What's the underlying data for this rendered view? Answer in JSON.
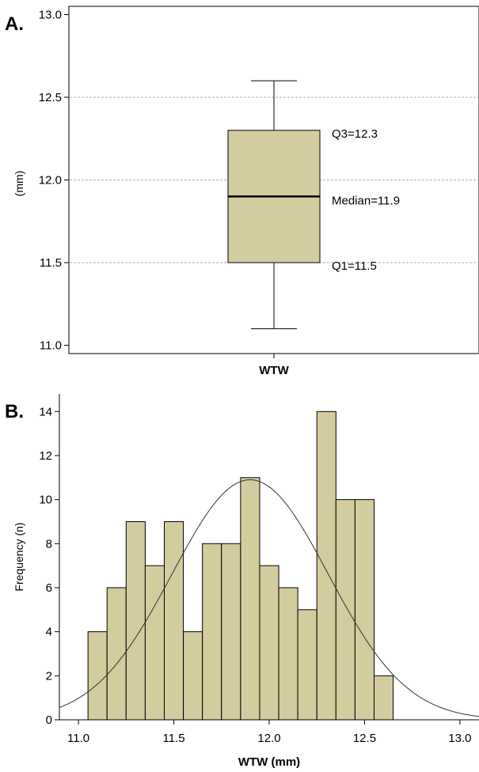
{
  "chart_data": [
    {
      "type": "box",
      "panel_label": "A.",
      "category": "WTW",
      "ylabel": "(mm)",
      "ylim": [
        10.95,
        13.05
      ],
      "yticks": [
        "11.0",
        "11.5",
        "12.0",
        "12.5",
        "13.0"
      ],
      "gridlines": [
        11.5,
        12.0,
        12.5
      ],
      "stats": {
        "min": 11.1,
        "q1": 11.5,
        "median": 11.9,
        "q3": 12.3,
        "max": 12.6
      },
      "annotations": {
        "q3": "Q3=12.3",
        "median": "Median=11.9",
        "q1": "Q1=11.5"
      },
      "colors": {
        "box": "#d3cc9e",
        "gridline": "#aaaaaa"
      }
    },
    {
      "type": "bar",
      "subtype": "histogram",
      "panel_label": "B.",
      "xlabel": "WTW (mm)",
      "ylabel": "Frequency (n)",
      "xlim": [
        10.9,
        13.1
      ],
      "ylim": [
        0,
        14.8
      ],
      "xticks": [
        "11.0",
        "11.5",
        "12.0",
        "12.5",
        "13.0"
      ],
      "yticks": [
        "0",
        "2",
        "4",
        "6",
        "8",
        "10",
        "12",
        "14"
      ],
      "bin_start": 11.05,
      "bin_width": 0.1,
      "values": [
        4,
        6,
        9,
        7,
        9,
        4,
        8,
        8,
        11,
        7,
        6,
        5,
        14,
        10,
        10,
        2
      ],
      "normal_curve": {
        "mean": 11.9,
        "sd": 0.41,
        "peak": 10.9
      },
      "colors": {
        "bar": "#d3cc9e"
      }
    }
  ]
}
